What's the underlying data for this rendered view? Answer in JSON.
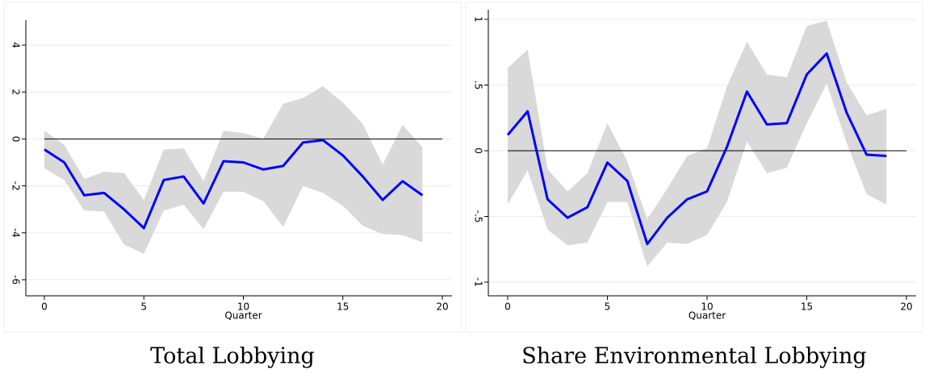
{
  "chart_data": [
    {
      "type": "line",
      "x_label": "Quarter",
      "caption": "Total Lobbying",
      "x": [
        0,
        1,
        2,
        3,
        4,
        5,
        6,
        7,
        8,
        9,
        10,
        11,
        12,
        13,
        14,
        15,
        16,
        17,
        18,
        19
      ],
      "values": [
        -0.45,
        -1.0,
        -2.4,
        -2.3,
        -3.0,
        -3.8,
        -1.75,
        -1.6,
        -2.75,
        -0.95,
        -1.0,
        -1.3,
        -1.15,
        -0.15,
        -0.05,
        -0.7,
        -1.6,
        -2.6,
        -1.8,
        -2.4
      ],
      "band_upper": [
        0.35,
        -0.25,
        -1.7,
        -1.4,
        -1.45,
        -2.6,
        -0.45,
        -0.4,
        -1.8,
        0.35,
        0.25,
        0.0,
        1.5,
        1.75,
        2.25,
        1.55,
        0.65,
        -1.1,
        0.6,
        -0.35
      ],
      "band_lower": [
        -1.25,
        -1.75,
        -3.05,
        -3.1,
        -4.5,
        -4.9,
        -3.05,
        -2.8,
        -3.85,
        -2.25,
        -2.25,
        -2.65,
        -3.75,
        -2.0,
        -2.3,
        -2.85,
        -3.7,
        -4.05,
        -4.1,
        -4.4
      ],
      "color": "#0000ff",
      "band_color": "#d9d9d9",
      "reference_line": 0,
      "xlim": [
        0,
        20
      ],
      "xticks": [
        0,
        5,
        10,
        15,
        20
      ],
      "ylim": [
        -6,
        4
      ],
      "yticks": [
        -6,
        -4,
        -2,
        0,
        2,
        4
      ],
      "grid": true
    },
    {
      "type": "line",
      "x_label": "Quarter",
      "caption": "Share Environmental Lobbying",
      "x": [
        0,
        1,
        2,
        3,
        4,
        5,
        6,
        7,
        8,
        9,
        10,
        11,
        12,
        13,
        14,
        15,
        16,
        17,
        18,
        19
      ],
      "values": [
        0.12,
        0.3,
        -0.37,
        -0.51,
        -0.43,
        -0.09,
        -0.23,
        -0.71,
        -0.51,
        -0.37,
        -0.31,
        0.03,
        0.45,
        0.2,
        0.21,
        0.58,
        0.74,
        0.29,
        -0.03,
        -0.04
      ],
      "band_upper": [
        0.63,
        0.77,
        -0.14,
        -0.31,
        -0.17,
        0.21,
        -0.08,
        -0.52,
        -0.29,
        -0.04,
        0.02,
        0.49,
        0.83,
        0.58,
        0.56,
        0.95,
        0.99,
        0.52,
        0.27,
        0.32
      ],
      "band_lower": [
        -0.41,
        -0.15,
        -0.6,
        -0.72,
        -0.7,
        -0.39,
        -0.39,
        -0.88,
        -0.7,
        -0.71,
        -0.64,
        -0.39,
        0.07,
        -0.17,
        -0.13,
        0.21,
        0.51,
        0.06,
        -0.33,
        -0.41
      ],
      "color": "#0000ff",
      "band_color": "#d9d9d9",
      "reference_line": 0,
      "xlim": [
        0,
        20
      ],
      "xticks": [
        0,
        5,
        10,
        15,
        20
      ],
      "ylim": [
        -1,
        1
      ],
      "yticks": [
        -1,
        {
          "value": -0.5,
          "label": "-.5"
        },
        0,
        {
          "value": 0.5,
          "label": ".5"
        },
        1
      ],
      "grid": true
    }
  ]
}
